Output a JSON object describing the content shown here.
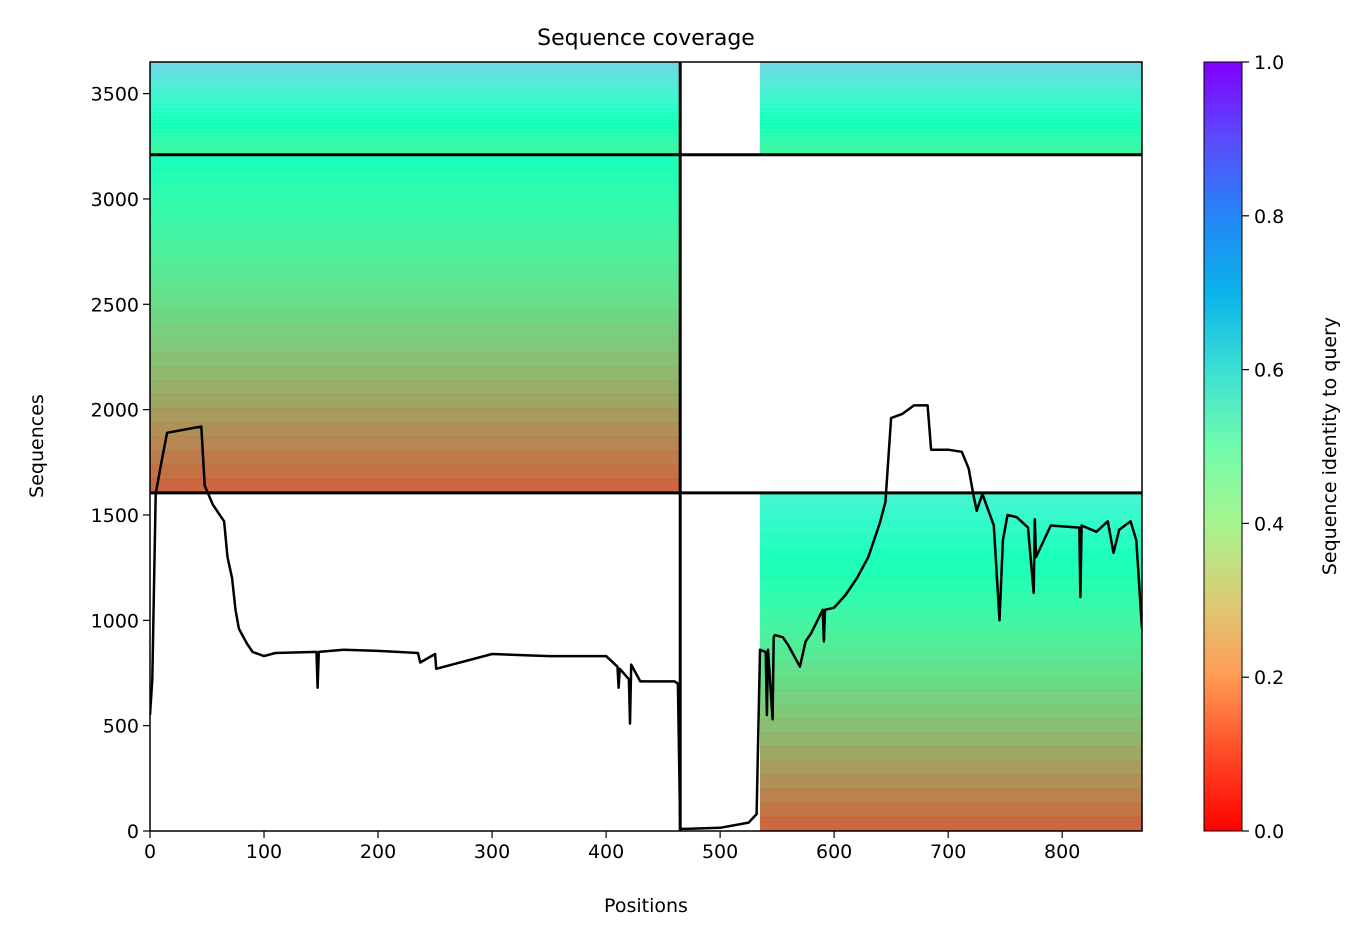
{
  "chart_data": {
    "type": "heatmap",
    "title": "Sequence coverage",
    "xlabel": "Positions",
    "ylabel": "Sequences",
    "xlim": [
      0,
      870
    ],
    "ylim": [
      0,
      3650
    ],
    "xticks": [
      0,
      100,
      200,
      300,
      400,
      500,
      600,
      700,
      800
    ],
    "yticks": [
      0,
      500,
      1000,
      1500,
      2000,
      2500,
      3000,
      3500
    ],
    "grid": false,
    "colorbar": {
      "label": "Sequence identity to query",
      "colormap": "rainbow_r",
      "range": [
        0,
        1
      ],
      "ticks": [
        0.0,
        0.2,
        0.4,
        0.6,
        0.8,
        1.0
      ],
      "tick_labels": [
        "0.0",
        "0.2",
        "0.4",
        "0.6",
        "0.8",
        "1.0"
      ]
    },
    "separators": {
      "horizontal_y": [
        1605,
        3210
      ],
      "vertical_x": [
        465
      ]
    },
    "blocks": [
      {
        "name": "paired-top",
        "x0": 0,
        "x1": 870,
        "y0": 3210,
        "y1": 3650,
        "segments": [
          [
            0,
            465
          ],
          [
            535,
            870
          ]
        ],
        "identity_range": [
          0.4,
          0.7
        ]
      },
      {
        "name": "chain-A",
        "x0": 0,
        "x1": 465,
        "y0": 1605,
        "y1": 3210,
        "identity_range": [
          0.1,
          0.5
        ]
      },
      {
        "name": "chain-B",
        "x0": 535,
        "x1": 870,
        "y0": 0,
        "y1": 1605,
        "identity_range": [
          0.1,
          0.6
        ]
      }
    ],
    "coverage_series": {
      "name": "",
      "color": "#000000",
      "x": [
        0,
        2,
        5,
        10,
        15,
        45,
        48,
        55,
        60,
        65,
        68,
        72,
        75,
        78,
        80,
        85,
        90,
        100,
        110,
        146,
        147,
        148,
        170,
        200,
        235,
        237,
        250,
        251,
        300,
        350,
        400,
        410,
        411,
        412,
        420,
        421,
        422,
        430,
        460,
        463,
        465,
        470,
        500,
        525,
        532,
        535,
        540,
        541,
        542,
        546,
        547,
        548,
        555,
        560,
        570,
        575,
        580,
        590,
        591,
        592,
        600,
        610,
        620,
        630,
        640,
        645,
        650,
        660,
        670,
        682,
        685,
        700,
        712,
        718,
        722,
        725,
        730,
        740,
        745,
        748,
        752,
        760,
        770,
        775,
        776,
        777,
        790,
        815,
        816,
        817,
        830,
        840,
        845,
        850,
        860,
        865,
        870
      ],
      "y": [
        550,
        720,
        1600,
        1750,
        1890,
        1920,
        1640,
        1550,
        1510,
        1470,
        1300,
        1200,
        1050,
        960,
        940,
        890,
        850,
        830,
        845,
        850,
        680,
        850,
        860,
        855,
        845,
        800,
        840,
        770,
        840,
        830,
        830,
        780,
        680,
        770,
        720,
        510,
        790,
        710,
        710,
        700,
        10,
        10,
        15,
        40,
        80,
        860,
        850,
        550,
        860,
        530,
        920,
        930,
        920,
        880,
        780,
        900,
        940,
        1050,
        900,
        1050,
        1060,
        1120,
        1200,
        1300,
        1460,
        1560,
        1960,
        1980,
        2020,
        2020,
        1810,
        1810,
        1800,
        1720,
        1600,
        1520,
        1600,
        1450,
        1000,
        1380,
        1500,
        1490,
        1440,
        1130,
        1480,
        1300,
        1450,
        1440,
        1110,
        1450,
        1420,
        1470,
        1320,
        1430,
        1470,
        1380,
        960
      ]
    }
  }
}
